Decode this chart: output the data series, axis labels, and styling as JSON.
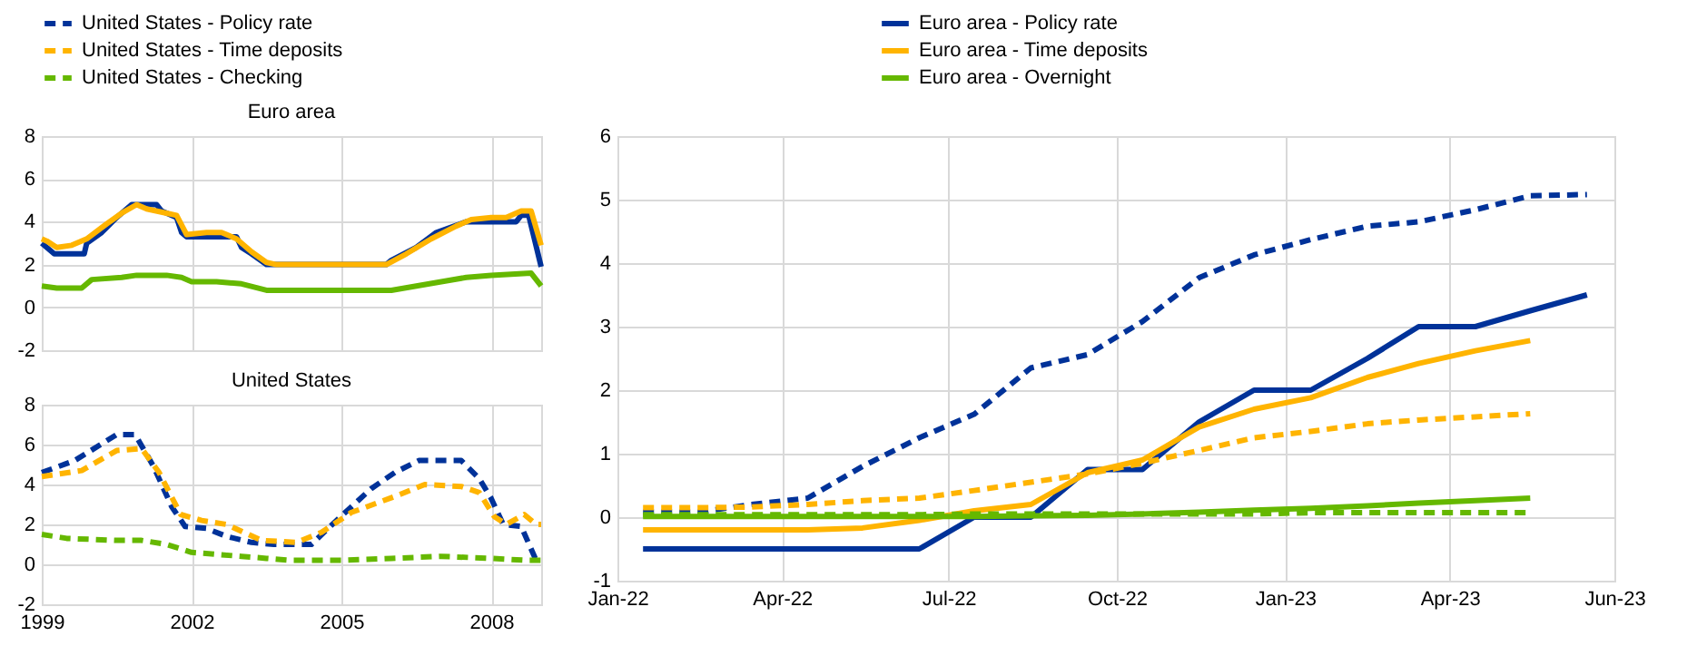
{
  "chart_data": [
    {
      "type": "line",
      "title": "Euro area",
      "xlim": [
        1999,
        2009
      ],
      "xticks": [
        1999,
        2002,
        2005,
        2008
      ],
      "ylim": [
        -2,
        8
      ],
      "yticks": [
        -2,
        0,
        2,
        4,
        6,
        8
      ],
      "grid": true,
      "tick_labels": "y",
      "line_style": "solid",
      "series": [
        {
          "color": "#003299",
          "x": [
            1999.0,
            1999.25,
            1999.85,
            1999.9,
            2000.2,
            2000.5,
            2000.8,
            2001.3,
            2001.4,
            2001.7,
            2001.8,
            2001.9,
            2002.9,
            2003.0,
            2003.2,
            2003.5,
            2005.9,
            2006.0,
            2006.5,
            2006.9,
            2007.5,
            2008.5,
            2008.6,
            2008.75,
            2009.0
          ],
          "values": [
            3.0,
            2.5,
            2.5,
            3.0,
            3.5,
            4.2,
            4.8,
            4.8,
            4.5,
            4.2,
            3.5,
            3.3,
            3.3,
            2.8,
            2.5,
            2.0,
            2.0,
            2.2,
            2.8,
            3.5,
            4.0,
            4.0,
            4.3,
            4.3,
            1.9
          ]
        },
        {
          "color": "#ffb400",
          "x": [
            1999.0,
            1999.1,
            1999.3,
            1999.6,
            1999.9,
            2000.3,
            2000.6,
            2000.9,
            2001.1,
            2001.5,
            2001.7,
            2001.9,
            2002.3,
            2002.6,
            2002.9,
            2003.2,
            2003.5,
            2003.7,
            2005.9,
            2006.3,
            2006.8,
            2007.3,
            2007.6,
            2008.0,
            2008.3,
            2008.6,
            2008.8,
            2009.0
          ],
          "values": [
            3.2,
            3.1,
            2.8,
            2.9,
            3.2,
            3.9,
            4.4,
            4.8,
            4.6,
            4.4,
            4.3,
            3.4,
            3.5,
            3.5,
            3.2,
            2.6,
            2.1,
            2.0,
            2.0,
            2.5,
            3.2,
            3.8,
            4.1,
            4.2,
            4.2,
            4.5,
            4.5,
            2.9
          ]
        },
        {
          "color": "#65b800",
          "x": [
            1999.0,
            1999.3,
            1999.8,
            2000.0,
            2000.6,
            2000.9,
            2001.5,
            2001.8,
            2002.0,
            2002.5,
            2003.0,
            2003.5,
            2004.5,
            2005.5,
            2006.0,
            2006.5,
            2007.0,
            2007.5,
            2008.0,
            2008.8,
            2009.0
          ],
          "values": [
            1.0,
            0.9,
            0.9,
            1.3,
            1.4,
            1.5,
            1.5,
            1.4,
            1.2,
            1.2,
            1.1,
            0.8,
            0.8,
            0.8,
            0.8,
            1.0,
            1.2,
            1.4,
            1.5,
            1.6,
            1.0
          ]
        }
      ]
    },
    {
      "type": "line",
      "title": "United States",
      "xlim": [
        1999,
        2009
      ],
      "xticks": [
        1999,
        2002,
        2005,
        2008
      ],
      "ylim": [
        -2,
        8
      ],
      "yticks": [
        -2,
        0,
        2,
        4,
        6,
        8
      ],
      "grid": true,
      "line_style": "dashed",
      "series": [
        {
          "color": "#003299",
          "x": [
            1999.0,
            1999.66,
            2000.5,
            2000.87,
            2001.24,
            2001.6,
            2001.87,
            2002.3,
            2002.7,
            2003.2,
            2003.65,
            2004.4,
            2004.86,
            2005.6,
            2006.07,
            2006.55,
            2007.4,
            2007.76,
            2008.0,
            2008.24,
            2008.6,
            2008.9,
            2009.0
          ],
          "values": [
            4.6,
            5.2,
            6.5,
            6.5,
            4.9,
            2.9,
            1.9,
            1.8,
            1.4,
            1.1,
            1.0,
            1.0,
            2.1,
            3.8,
            4.6,
            5.2,
            5.2,
            4.3,
            3.3,
            2.0,
            1.9,
            0.2,
            0.2
          ]
        },
        {
          "color": "#ffb400",
          "x": [
            1999.0,
            1999.8,
            2000.5,
            2001.0,
            2001.35,
            2001.78,
            2002.2,
            2002.7,
            2003.4,
            2004.1,
            2004.6,
            2005.2,
            2006.07,
            2006.67,
            2007.4,
            2007.76,
            2008.06,
            2008.3,
            2008.66,
            2008.9,
            2009.0
          ],
          "values": [
            4.4,
            4.7,
            5.7,
            5.8,
            4.6,
            2.5,
            2.2,
            2.0,
            1.2,
            1.1,
            1.6,
            2.6,
            3.4,
            4.0,
            3.9,
            3.6,
            2.4,
            2.0,
            2.5,
            2.0,
            2.0
          ]
        },
        {
          "color": "#65b800",
          "x": [
            1999.0,
            1999.5,
            2000.5,
            2001.0,
            2001.5,
            2002.0,
            2002.5,
            2003.0,
            2003.5,
            2004.0,
            2005.0,
            2006.0,
            2007.0,
            2008.0,
            2008.7,
            2009.0
          ],
          "values": [
            1.5,
            1.3,
            1.2,
            1.2,
            1.0,
            0.6,
            0.5,
            0.4,
            0.3,
            0.2,
            0.2,
            0.3,
            0.4,
            0.3,
            0.2,
            0.2
          ]
        }
      ]
    },
    {
      "type": "line",
      "x": [
        "2022-01-15",
        "2022-02-15",
        "2022-03-15",
        "2022-04-15",
        "2022-05-15",
        "2022-06-15",
        "2022-07-15",
        "2022-08-15",
        "2022-09-15",
        "2022-10-15",
        "2022-11-15",
        "2022-12-15",
        "2023-01-15",
        "2023-02-15",
        "2023-03-15",
        "2023-04-15",
        "2023-05-15",
        "2023-06-15"
      ],
      "xlim": [
        "2022-01-01",
        "2023-06-30"
      ],
      "xticks": [
        {
          "value": "2022-01-01",
          "label": "Jan-22"
        },
        {
          "value": "2022-04-01",
          "label": "Apr-22"
        },
        {
          "value": "2022-07-01",
          "label": "Jul-22"
        },
        {
          "value": "2022-10-01",
          "label": "Oct-22"
        },
        {
          "value": "2023-01-01",
          "label": "Jan-23"
        },
        {
          "value": "2023-04-01",
          "label": "Apr-23"
        },
        {
          "value": "2023-06-30",
          "label": "Jun-23"
        }
      ],
      "ylim": [
        -1,
        6
      ],
      "yticks": [
        -1,
        0,
        1,
        2,
        3,
        4,
        5,
        6
      ],
      "grid": true,
      "legend": "top",
      "series": [
        {
          "name": "United States - Policy rate",
          "color": "#003299",
          "line_style": "dashed",
          "values": [
            0.08,
            0.08,
            0.2,
            0.3,
            0.8,
            1.25,
            1.62,
            2.35,
            2.56,
            3.08,
            3.77,
            4.13,
            4.37,
            4.58,
            4.65,
            4.84,
            5.06,
            5.08
          ]
        },
        {
          "name": "Euro area - Policy rate",
          "color": "#003299",
          "line_style": "solid",
          "values": [
            -0.5,
            -0.5,
            -0.5,
            -0.5,
            -0.5,
            -0.5,
            0,
            0,
            0.75,
            0.75,
            1.5,
            2,
            2,
            2.5,
            3,
            3,
            3.25,
            3.5
          ]
        },
        {
          "name": "United States - Time deposits",
          "color": "#ffb400",
          "line_style": "dashed",
          "values": [
            0.15,
            0.15,
            0.16,
            0.2,
            0.26,
            0.3,
            0.42,
            0.55,
            0.68,
            0.85,
            1.05,
            1.25,
            1.35,
            1.47,
            1.53,
            1.58,
            1.63,
            null
          ]
        },
        {
          "name": "Euro area - Time deposits",
          "color": "#ffb400",
          "line_style": "solid",
          "values": [
            -0.2,
            -0.2,
            -0.2,
            -0.2,
            -0.17,
            -0.05,
            0.1,
            0.2,
            0.7,
            0.9,
            1.42,
            1.7,
            1.88,
            2.2,
            2.42,
            2.62,
            2.78,
            null
          ]
        },
        {
          "name": "United States - Checking",
          "color": "#65b800",
          "line_style": "dashed",
          "values": [
            0.04,
            0.04,
            0.04,
            0.04,
            0.04,
            0.04,
            0.05,
            0.05,
            0.05,
            0.05,
            0.05,
            0.05,
            0.07,
            0.07,
            0.07,
            0.07,
            0.07,
            null
          ]
        },
        {
          "name": "Euro area - Overnight",
          "color": "#65b800",
          "line_style": "solid",
          "values": [
            0.01,
            0.01,
            0.01,
            0.01,
            0.01,
            0.01,
            0.01,
            0.02,
            0.03,
            0.05,
            0.08,
            0.11,
            0.14,
            0.18,
            0.22,
            0.26,
            0.3,
            null
          ]
        }
      ]
    }
  ]
}
